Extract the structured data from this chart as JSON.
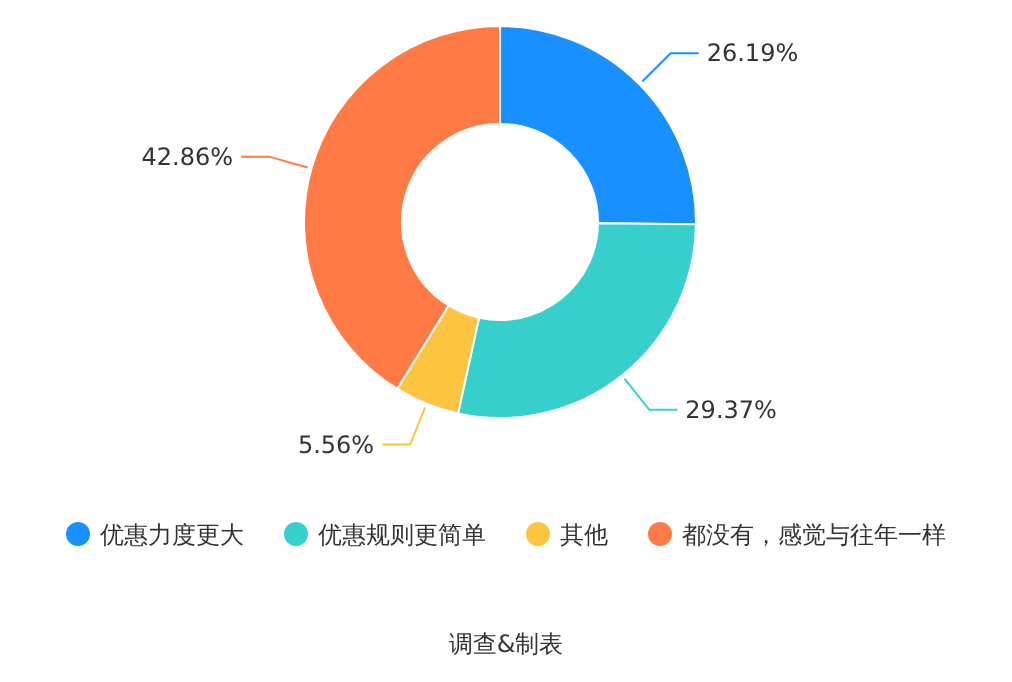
{
  "chart_data": {
    "type": "donut",
    "categories": [
      "优惠力度更大",
      "优惠规则更简单",
      "其他",
      "都没有，感觉与往年一样"
    ],
    "values": [
      26.19,
      29.37,
      5.56,
      42.86
    ],
    "value_labels": [
      "26.19%",
      "29.37%",
      "5.56%",
      "42.86%"
    ],
    "colors": [
      "#1890ff",
      "#36cfcb",
      "#fcc43f",
      "#ff7a45"
    ],
    "legend": "bottom",
    "annotations": [
      "调查&制表"
    ]
  }
}
